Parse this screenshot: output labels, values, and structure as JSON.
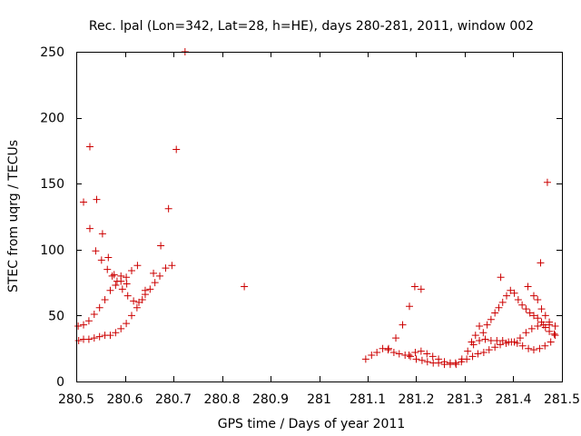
{
  "chart_data": {
    "type": "scatter",
    "title": "Rec. lpal (Lon=342, Lat=28, h=HE), days 280-281, 2011, window 002",
    "xlabel": "GPS time / Days of year 2011",
    "ylabel": "STEC from uqrg / TECUs",
    "xlim": [
      280.5,
      281.5
    ],
    "ylim": [
      0,
      250
    ],
    "grid": false,
    "legend": "none",
    "marker": "+",
    "marker_color": "#cc0000",
    "x_ticks": [
      {
        "value": 280.5,
        "label": "280.5"
      },
      {
        "value": 280.6,
        "label": "280.6"
      },
      {
        "value": 280.7,
        "label": "280.7"
      },
      {
        "value": 280.8,
        "label": "280.8"
      },
      {
        "value": 280.9,
        "label": "280.9"
      },
      {
        "value": 281.0,
        "label": "281"
      },
      {
        "value": 281.1,
        "label": "281.1"
      },
      {
        "value": 281.2,
        "label": "281.2"
      },
      {
        "value": 281.3,
        "label": "281.3"
      },
      {
        "value": 281.4,
        "label": "281.4"
      },
      {
        "value": 281.5,
        "label": "281.5"
      }
    ],
    "y_ticks": [
      {
        "value": 0,
        "label": "0"
      },
      {
        "value": 50,
        "label": "50"
      },
      {
        "value": 100,
        "label": "100"
      },
      {
        "value": 150,
        "label": "150"
      },
      {
        "value": 200,
        "label": "200"
      },
      {
        "value": 250,
        "label": "250"
      }
    ],
    "points": [
      [
        280.505,
        31
      ],
      [
        280.515,
        32
      ],
      [
        280.526,
        32
      ],
      [
        280.537,
        33
      ],
      [
        280.548,
        34
      ],
      [
        280.559,
        35
      ],
      [
        280.57,
        35
      ],
      [
        280.581,
        37
      ],
      [
        280.592,
        40
      ],
      [
        280.603,
        44
      ],
      [
        280.614,
        50
      ],
      [
        280.625,
        56
      ],
      [
        280.636,
        62
      ],
      [
        280.504,
        42
      ],
      [
        280.515,
        43
      ],
      [
        280.526,
        46
      ],
      [
        280.537,
        51
      ],
      [
        280.548,
        56
      ],
      [
        280.559,
        62
      ],
      [
        280.57,
        69
      ],
      [
        280.581,
        73
      ],
      [
        280.592,
        76
      ],
      [
        280.603,
        79
      ],
      [
        280.614,
        84
      ],
      [
        280.626,
        88
      ],
      [
        280.515,
        136
      ],
      [
        280.528,
        116
      ],
      [
        280.54,
        99
      ],
      [
        280.552,
        92
      ],
      [
        280.564,
        85
      ],
      [
        280.574,
        80
      ],
      [
        280.584,
        76
      ],
      [
        280.595,
        70
      ],
      [
        280.606,
        65
      ],
      [
        280.618,
        61
      ],
      [
        280.629,
        60
      ],
      [
        280.642,
        66
      ],
      [
        280.652,
        70
      ],
      [
        280.662,
        75
      ],
      [
        280.672,
        80
      ],
      [
        280.684,
        86
      ],
      [
        280.697,
        88
      ],
      [
        280.528,
        178
      ],
      [
        280.542,
        138
      ],
      [
        280.554,
        112
      ],
      [
        280.566,
        94
      ],
      [
        280.578,
        81
      ],
      [
        280.592,
        80
      ],
      [
        280.604,
        74
      ],
      [
        280.642,
        69
      ],
      [
        280.659,
        82
      ],
      [
        280.674,
        103
      ],
      [
        280.69,
        131
      ],
      [
        280.706,
        176
      ],
      [
        280.724,
        250
      ],
      [
        280.846,
        72
      ],
      [
        281.096,
        17
      ],
      [
        281.108,
        20
      ],
      [
        281.119,
        22
      ],
      [
        281.131,
        25
      ],
      [
        281.142,
        24
      ],
      [
        281.154,
        22
      ],
      [
        281.165,
        21
      ],
      [
        281.177,
        20
      ],
      [
        281.188,
        19
      ],
      [
        281.2,
        17
      ],
      [
        281.212,
        16
      ],
      [
        281.223,
        15
      ],
      [
        281.235,
        14
      ],
      [
        281.246,
        14
      ],
      [
        281.258,
        13
      ],
      [
        281.27,
        13
      ],
      [
        281.281,
        14
      ],
      [
        281.293,
        15
      ],
      [
        281.304,
        17
      ],
      [
        281.316,
        19
      ],
      [
        281.327,
        21
      ],
      [
        281.339,
        22
      ],
      [
        281.35,
        24
      ],
      [
        281.362,
        26
      ],
      [
        281.373,
        28
      ],
      [
        281.385,
        29
      ],
      [
        281.396,
        30
      ],
      [
        281.408,
        29
      ],
      [
        281.419,
        27
      ],
      [
        281.431,
        25
      ],
      [
        281.442,
        24
      ],
      [
        281.454,
        25
      ],
      [
        281.465,
        27
      ],
      [
        281.477,
        30
      ],
      [
        281.143,
        25
      ],
      [
        281.158,
        33
      ],
      [
        281.172,
        43
      ],
      [
        281.186,
        57
      ],
      [
        281.197,
        72
      ],
      [
        281.21,
        70
      ],
      [
        281.185,
        20
      ],
      [
        281.198,
        22
      ],
      [
        281.21,
        23
      ],
      [
        281.222,
        21
      ],
      [
        281.234,
        19
      ],
      [
        281.246,
        17
      ],
      [
        281.258,
        15
      ],
      [
        281.27,
        14
      ],
      [
        281.282,
        13
      ],
      [
        281.294,
        17
      ],
      [
        281.306,
        23
      ],
      [
        281.318,
        28
      ],
      [
        281.33,
        31
      ],
      [
        281.342,
        32
      ],
      [
        281.354,
        31
      ],
      [
        281.366,
        31
      ],
      [
        281.378,
        31
      ],
      [
        281.39,
        30
      ],
      [
        281.402,
        30
      ],
      [
        281.414,
        33
      ],
      [
        281.426,
        37
      ],
      [
        281.438,
        40
      ],
      [
        281.45,
        42
      ],
      [
        281.462,
        43
      ],
      [
        281.474,
        43
      ],
      [
        281.486,
        42
      ],
      [
        281.314,
        30
      ],
      [
        281.322,
        35
      ],
      [
        281.33,
        42
      ],
      [
        281.338,
        37
      ],
      [
        281.346,
        43
      ],
      [
        281.354,
        47
      ],
      [
        281.362,
        52
      ],
      [
        281.37,
        56
      ],
      [
        281.378,
        60
      ],
      [
        281.386,
        65
      ],
      [
        281.394,
        69
      ],
      [
        281.402,
        67
      ],
      [
        281.41,
        62
      ],
      [
        281.418,
        58
      ],
      [
        281.426,
        55
      ],
      [
        281.434,
        52
      ],
      [
        281.442,
        50
      ],
      [
        281.45,
        48
      ],
      [
        281.458,
        45
      ],
      [
        281.466,
        41
      ],
      [
        281.474,
        38
      ],
      [
        281.484,
        36
      ],
      [
        281.374,
        79
      ],
      [
        281.43,
        72
      ],
      [
        281.442,
        65
      ],
      [
        281.45,
        62
      ],
      [
        281.458,
        55
      ],
      [
        281.466,
        50
      ],
      [
        281.474,
        45
      ],
      [
        281.486,
        35
      ],
      [
        281.456,
        90
      ],
      [
        281.47,
        151
      ]
    ]
  }
}
